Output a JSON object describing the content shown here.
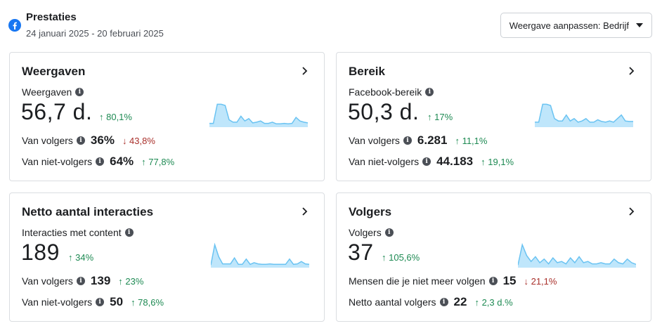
{
  "header": {
    "title": "Prestaties",
    "date_range": "24 januari 2025 - 20 februari 2025",
    "view_button": "Weergave aanpassen: Bedrijf"
  },
  "colors": {
    "up": "#1e8a53",
    "down": "#a9302b",
    "spark_fill": "#bfe6fb",
    "spark_line": "#6ac3f2",
    "facebook": "#1877f2"
  },
  "cards": [
    {
      "title": "Weergaven",
      "metric_label": "Weergaven",
      "value": "56,7 d.",
      "change": "↑ 80,1%",
      "rows": [
        {
          "label": "Van volgers",
          "value": "36%",
          "change": "↓ 43,8%"
        },
        {
          "label": "Van niet-volgers",
          "value": "64%",
          "change": "↑ 77,8%"
        }
      ],
      "spark": [
        0.1,
        0.1,
        0.9,
        0.9,
        0.85,
        0.25,
        0.15,
        0.15,
        0.4,
        0.2,
        0.3,
        0.12,
        0.15,
        0.2,
        0.1,
        0.1,
        0.15,
        0.08,
        0.08,
        0.1,
        0.08,
        0.1,
        0.35,
        0.2,
        0.15,
        0.12
      ]
    },
    {
      "title": "Bereik",
      "metric_label": "Facebook-bereik",
      "value": "50,3 d.",
      "change": "↑ 17%",
      "rows": [
        {
          "label": "Van volgers",
          "value": "6.281",
          "change": "↑ 11,1%"
        },
        {
          "label": "Van niet-volgers",
          "value": "44.183",
          "change": "↑ 19,1%"
        }
      ],
      "spark": [
        0.15,
        0.15,
        0.9,
        0.9,
        0.85,
        0.3,
        0.2,
        0.2,
        0.45,
        0.2,
        0.3,
        0.15,
        0.2,
        0.3,
        0.15,
        0.15,
        0.25,
        0.18,
        0.15,
        0.2,
        0.15,
        0.3,
        0.45,
        0.2,
        0.18,
        0.18
      ]
    },
    {
      "title": "Netto aantal interacties",
      "metric_label": "Interacties met content",
      "value": "189",
      "change": "↑ 34%",
      "rows": [
        {
          "label": "Van volgers",
          "value": "139",
          "change": "↑ 23%"
        },
        {
          "label": "Van niet-volgers",
          "value": "50",
          "change": "↑ 78,6%"
        }
      ],
      "spark": [
        0.05,
        0.9,
        0.4,
        0.1,
        0.1,
        0.1,
        0.35,
        0.08,
        0.08,
        0.3,
        0.08,
        0.15,
        0.1,
        0.08,
        0.08,
        0.1,
        0.08,
        0.08,
        0.08,
        0.08,
        0.3,
        0.08,
        0.1,
        0.2,
        0.1,
        0.08
      ]
    },
    {
      "title": "Volgers",
      "metric_label": "Volgers",
      "value": "37",
      "change": "↑ 105,6%",
      "rows": [
        {
          "label": "Mensen die je niet meer volgen",
          "value": "15",
          "change": "↓ 21,1%"
        },
        {
          "label": "Netto aantal volgers",
          "value": "22",
          "change": "↑ 2,3 d.%"
        }
      ],
      "spark": [
        0.05,
        0.9,
        0.45,
        0.2,
        0.4,
        0.15,
        0.3,
        0.1,
        0.35,
        0.15,
        0.2,
        0.1,
        0.35,
        0.15,
        0.4,
        0.15,
        0.2,
        0.1,
        0.1,
        0.15,
        0.1,
        0.1,
        0.3,
        0.15,
        0.1,
        0.3,
        0.15,
        0.08
      ]
    }
  ]
}
